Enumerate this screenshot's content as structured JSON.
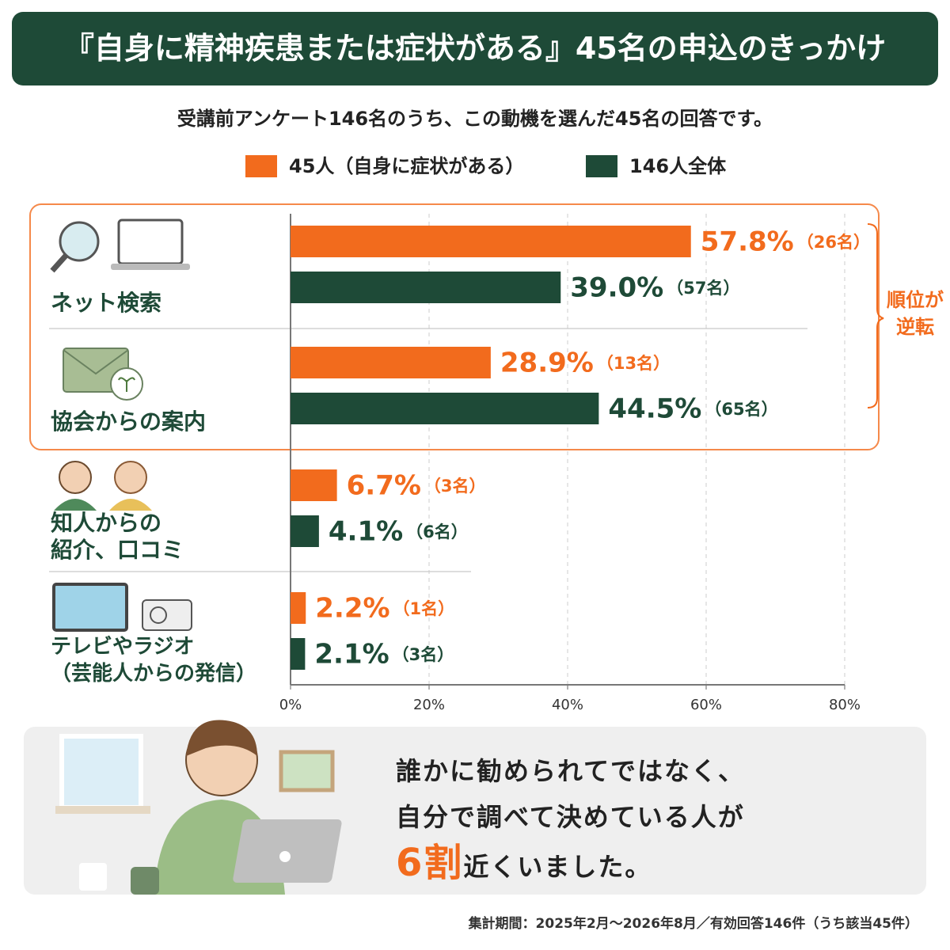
{
  "chart_data": {
    "type": "bar",
    "orientation": "horizontal",
    "title": "『自身に精神疾患または症状がある』45名の申込のきっかけ",
    "subtitle": "受講前アンケート146名のうち、この動機を選んだ45名の回答です。",
    "categories": [
      "ネット検索",
      "協会からの案内",
      "知人からの\n紹介、口コミ",
      "テレビやラジオ\n（芸能人からの発信）"
    ],
    "series": [
      {
        "name": "45人（自身に症状がある）",
        "color": "#f26b1d",
        "values": [
          57.8,
          28.9,
          6.7,
          2.2
        ],
        "value_labels": [
          "57.8%",
          "28.9%",
          "6.7%",
          "2.2%"
        ],
        "count_labels": [
          "（26名）",
          "（13名）",
          "（3名）",
          "（1名）"
        ]
      },
      {
        "name": "146人全体",
        "color": "#1e4a37",
        "values": [
          39.0,
          44.5,
          4.1,
          2.1
        ],
        "value_labels": [
          "39.0%",
          "44.5%",
          "4.1%",
          "2.1%"
        ],
        "count_labels": [
          "（57名）",
          "（65名）",
          "（6名）",
          "（3名）"
        ]
      }
    ],
    "xlim": [
      0,
      80
    ],
    "xticks": [
      {
        "value": 0,
        "label": "0%"
      },
      {
        "value": 20,
        "label": "20%"
      },
      {
        "value": 40,
        "label": "40%"
      },
      {
        "value": 60,
        "label": "60%"
      },
      {
        "value": 80,
        "label": "80%"
      }
    ],
    "grid": true,
    "annotation": "順位が\n逆転",
    "callout": {
      "text": "誰かに勧められてではなく、\n自分で調べて決めている人が",
      "highlight": "6割",
      "tail": "近くいました。"
    },
    "source": "集計期間：2025年2月〜2026年8月／有効回答146件（うち該当45件）"
  }
}
